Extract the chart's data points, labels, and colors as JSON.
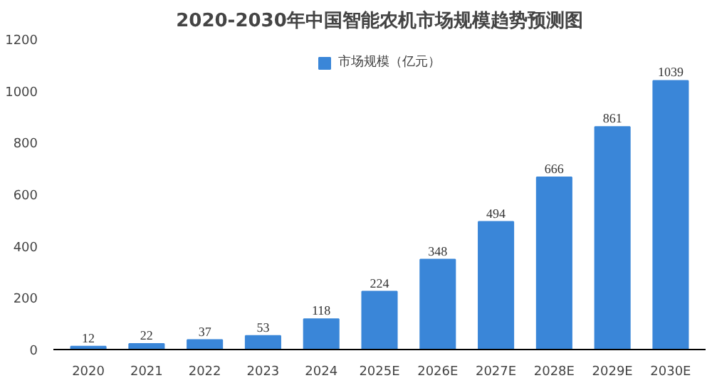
{
  "chart_data": {
    "type": "bar",
    "title": "2020-2030年中国智能农机市场规模趋势预测图",
    "categories": [
      "2020",
      "2021",
      "2022",
      "2023",
      "2024",
      "2025E",
      "2026E",
      "2027E",
      "2028E",
      "2029E",
      "2030E"
    ],
    "series": [
      {
        "name": "市场规模（亿元）",
        "color": "#3a86d8",
        "values": [
          12,
          22,
          37,
          53,
          118,
          224,
          348,
          494,
          666,
          861,
          1039
        ]
      }
    ],
    "ylim": [
      0,
      1200
    ],
    "yticks": [
      0,
      200,
      400,
      600,
      800,
      1000,
      1200
    ],
    "data_labels": true,
    "legend": "top",
    "grid": false
  }
}
